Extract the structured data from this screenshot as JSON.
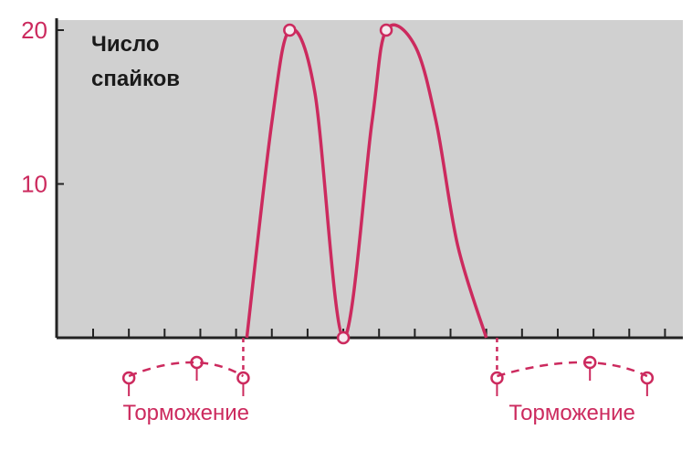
{
  "chart_data": {
    "type": "line",
    "ylabel_lines": [
      "Число",
      "спайков"
    ],
    "ylim": [
      0,
      20
    ],
    "yticks": [
      10,
      20
    ],
    "xlim": [
      0,
      16.5
    ],
    "xticks": [
      0,
      1,
      2,
      3,
      4,
      5,
      6,
      7,
      8,
      9,
      10,
      11,
      12,
      13,
      14,
      15,
      16
    ],
    "grid": false,
    "colors": {
      "line": "#cc2a5e",
      "panel": "#d0d0d0",
      "axis": "#222222"
    },
    "series": [
      {
        "x": [
          4.3,
          5.0,
          5.5,
          6.2,
          7.0,
          7.8,
          8.2,
          9.0,
          9.6,
          10.2,
          11.0
        ],
        "values": [
          0,
          14,
          20,
          16,
          0,
          14,
          20,
          19,
          14,
          6,
          0
        ],
        "markers_at": [
          2,
          4,
          6
        ]
      }
    ],
    "annotations": [
      {
        "label": "Торможение",
        "zero_marker_x": [
          1,
          2.9,
          4.2
        ]
      },
      {
        "label": "Торможение",
        "zero_marker_x": [
          11.3,
          13.9,
          15.5
        ]
      }
    ]
  }
}
